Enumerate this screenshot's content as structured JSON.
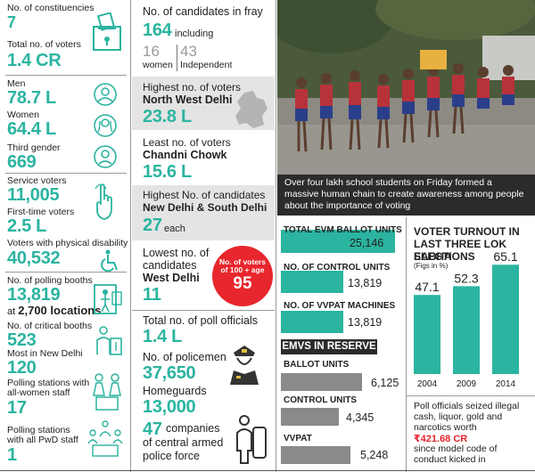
{
  "left": {
    "constituencies": {
      "label": "No. of constituencies",
      "value": "7"
    },
    "voters": {
      "label": "Total no. of voters",
      "value": "1.4 CR"
    },
    "men": {
      "label": "Men",
      "value": "78.7 L"
    },
    "women": {
      "label": "Women",
      "value": "64.4 L"
    },
    "third_gender": {
      "label": "Third gender",
      "value": "669"
    },
    "service": {
      "label": "Service voters",
      "value": "11,005"
    },
    "first_time": {
      "label": "First-time voters",
      "value": "2.5 L"
    },
    "disability": {
      "label": "Voters with physical disability",
      "value": "40,532"
    },
    "booths": {
      "label": "No. of polling booths",
      "value": "13,819",
      "sub_prefix": "at",
      "sub_value": "2,700 locations"
    },
    "critical": {
      "label": "No. of critical booths",
      "value": "523"
    },
    "new_delhi": {
      "label": "Most in New Delhi",
      "value": "120"
    },
    "women_staff": {
      "label1": "Polling stations with",
      "label2": "all-women staff",
      "value": "17"
    },
    "pwd_staff": {
      "label1": "Polling stations",
      "label2": "with all PwD staff",
      "value": "1"
    }
  },
  "middle": {
    "candidates": {
      "label": "No. of candidates in fray",
      "value": "164",
      "including": "including",
      "women_count": "16",
      "women_label": "women",
      "ind_count": "43",
      "ind_label": "Independent"
    },
    "highest_voters": {
      "label": "Highest no. of voters",
      "place": "North West Delhi",
      "value": "23.8 L"
    },
    "least_voters": {
      "label": "Least no. of voters",
      "place": "Chandni Chowk",
      "value": "15.6 L"
    },
    "highest_candidates": {
      "label": "Highest No. of candidates",
      "place": "New Delhi & South Delhi",
      "value": "27",
      "suffix": "each"
    },
    "lowest_candidates": {
      "label1": "Lowest no. of",
      "label2": "candidates",
      "place": "West Delhi",
      "value": "11"
    },
    "badge": {
      "line1": "No. of voters",
      "line2": "of 100 + age",
      "value": "95"
    },
    "poll_officials": {
      "label": "Total no. of poll officials",
      "value": "1.4 L"
    },
    "policemen": {
      "label": "No. of policemen",
      "value": "37,650"
    },
    "homeguards": {
      "label": "Homeguards",
      "value": "13,000"
    },
    "companies": {
      "value": "47",
      "text1": "companies",
      "text2": "of central armed",
      "text3": "police force"
    }
  },
  "photo": {
    "caption": "Over four lakh school students on Friday formed a massive human chain to create awareness among people about the importance of voting"
  },
  "evm": {
    "max": 25146,
    "items": [
      {
        "label": "TOTAL EVM BALLOT UNITS",
        "value": 25146,
        "display": "25,146"
      },
      {
        "label": "NO. OF CONTROL UNITS",
        "value": 13819,
        "display": "13,819"
      },
      {
        "label": "NO. OF VVPAT MACHINES",
        "value": 13819,
        "display": "13,819"
      }
    ],
    "reserve_title": "EMVS IN RESERVE",
    "reserve": [
      {
        "label": "BALLOT UNITS",
        "value": 6125,
        "display": "6,125"
      },
      {
        "label": "CONTROL UNITS",
        "value": 4345,
        "display": "4,345"
      },
      {
        "label": "VVPAT",
        "value": 5248,
        "display": "5,248"
      }
    ]
  },
  "turnout": {
    "title1": "VOTER TURNOUT IN",
    "title2": "LAST THREE LOK SABHA",
    "title3": "ELECTIONS",
    "unit": "(Figs in %)"
  },
  "chart_data": {
    "type": "bar",
    "title": "VOTER TURNOUT IN LAST THREE LOK SABHA ELECTIONS",
    "ylabel": "(Figs in %)",
    "categories": [
      "2004",
      "2009",
      "2014"
    ],
    "values": [
      47.1,
      52.3,
      65.1
    ],
    "value_labels": [
      "47.1",
      "52.3",
      "65.1"
    ],
    "ylim": [
      0,
      70
    ],
    "color": "#2bb4a0"
  },
  "seized": {
    "text1": "Poll officials seized illegal",
    "text2": "cash, liquor, gold and",
    "text3": "narcotics worth",
    "amount": "₹421.68 CR",
    "text4": "since model code of",
    "text5": "conduct kicked in"
  },
  "colors": {
    "accent": "#2bb4a0",
    "badge": "#e8262d",
    "grey": "#8a8a8a"
  }
}
